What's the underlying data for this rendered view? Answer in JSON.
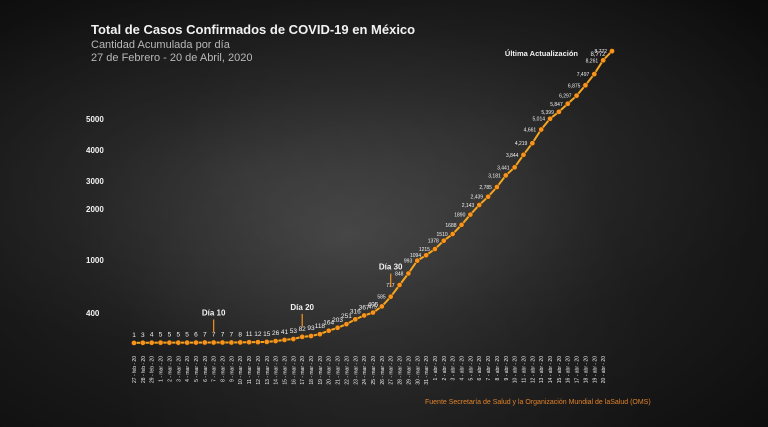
{
  "header": {
    "title": "Total de Casos Confirmados de COVID-19 en México",
    "subtitle": "Cantidad Acumulada por día",
    "date_range": "27 de Febrero - 20 de Abril, 2020"
  },
  "source": "Fuente Secretaría de Salud y la Organización Mundial de laSalud (OMS)",
  "colors": {
    "line": "#f5a623",
    "point": "#f7931e",
    "text": "#f2f2f2",
    "source": "#e0822a"
  },
  "chart_data": {
    "type": "line",
    "title": "Total de Casos Confirmados de COVID-19 en México",
    "y_ticks": [
      400,
      1000,
      2000,
      3000,
      4000,
      5000
    ],
    "y_scale": "non-linear",
    "x": [
      "27 - feb - 20",
      "28 - feb - 20",
      "29 - feb - 20",
      "1 - mar - 20",
      "2 - mar - 20",
      "3 - mar - 20",
      "4 - mar - 20",
      "5 - mar - 20",
      "6 - mar - 20",
      "7 - mar - 20",
      "8 - mar - 20",
      "9 - mar - 20",
      "10 - mar - 20",
      "11 - mar - 20",
      "12 - mar - 20",
      "13 - mar - 20",
      "14 - mar - 20",
      "15 - mar - 20",
      "16 - mar - 20",
      "17 - mar - 20",
      "18 - mar - 20",
      "19 - mar - 20",
      "20 - mar - 20",
      "21 - mar - 20",
      "22 - mar - 20",
      "23 - mar - 20",
      "24 - mar - 20",
      "25 - mar - 20",
      "26 - mar - 20",
      "27 - mar - 20",
      "28 - mar - 20",
      "29 - mar - 20",
      "30 - mar - 20",
      "31 - mar - 20",
      "1 - abr - 20",
      "2 - abr - 20",
      "3 - abr - 20",
      "4 - abr - 20",
      "5 - abr - 20",
      "6 - abr - 20",
      "7 - abr - 20",
      "8 - abr - 20",
      "9 - abr - 20",
      "10 - abr - 20",
      "11 - abr - 20",
      "12 - abr - 20",
      "13 - abr - 20",
      "14 - abr - 20",
      "15 - abr - 20",
      "16 - abr - 20",
      "17 - abr - 20",
      "18 - abr - 20",
      "19 - abr - 20",
      "20 - abr - 20"
    ],
    "values": [
      1,
      3,
      4,
      5,
      5,
      5,
      5,
      6,
      7,
      7,
      7,
      7,
      8,
      11,
      12,
      15,
      26,
      41,
      53,
      82,
      93,
      118,
      164,
      203,
      251,
      316,
      367,
      405,
      475,
      585,
      717,
      848,
      993,
      1094,
      1215,
      1378,
      1510,
      1688,
      1890,
      2143,
      2439,
      2785,
      3181,
      3441,
      3844,
      4219,
      4661,
      5014,
      5399,
      5847,
      6297,
      6875,
      7497,
      8261
    ],
    "labels": [
      "1",
      "3",
      "4",
      "5",
      "5",
      "5",
      "5",
      "6",
      "7",
      "7",
      "7",
      "7",
      "8",
      "11",
      "12",
      "15",
      "26",
      "41",
      "53",
      "82",
      "93",
      "118",
      "164",
      "203",
      "251",
      "316",
      "367",
      "405",
      "475",
      "585",
      "717",
      "848",
      "993",
      "1094",
      "1215",
      "1378",
      "1510",
      "1688",
      "1890",
      "2,143",
      "2,439",
      "2,785",
      "3,181",
      "3,441",
      "3,844",
      "4,219",
      "4,661",
      "5,014",
      "5,399",
      "5,847",
      "6,297",
      "6,875",
      "7,497",
      "8,261"
    ],
    "final": {
      "value": 8772,
      "label": "8,772"
    },
    "annotations": [
      {
        "text": "Día 10",
        "index": 9
      },
      {
        "text": "Día 20",
        "index": 19
      },
      {
        "text": "Día 30",
        "index": 29
      },
      {
        "text": "Última Actualización",
        "index": 53
      }
    ]
  }
}
